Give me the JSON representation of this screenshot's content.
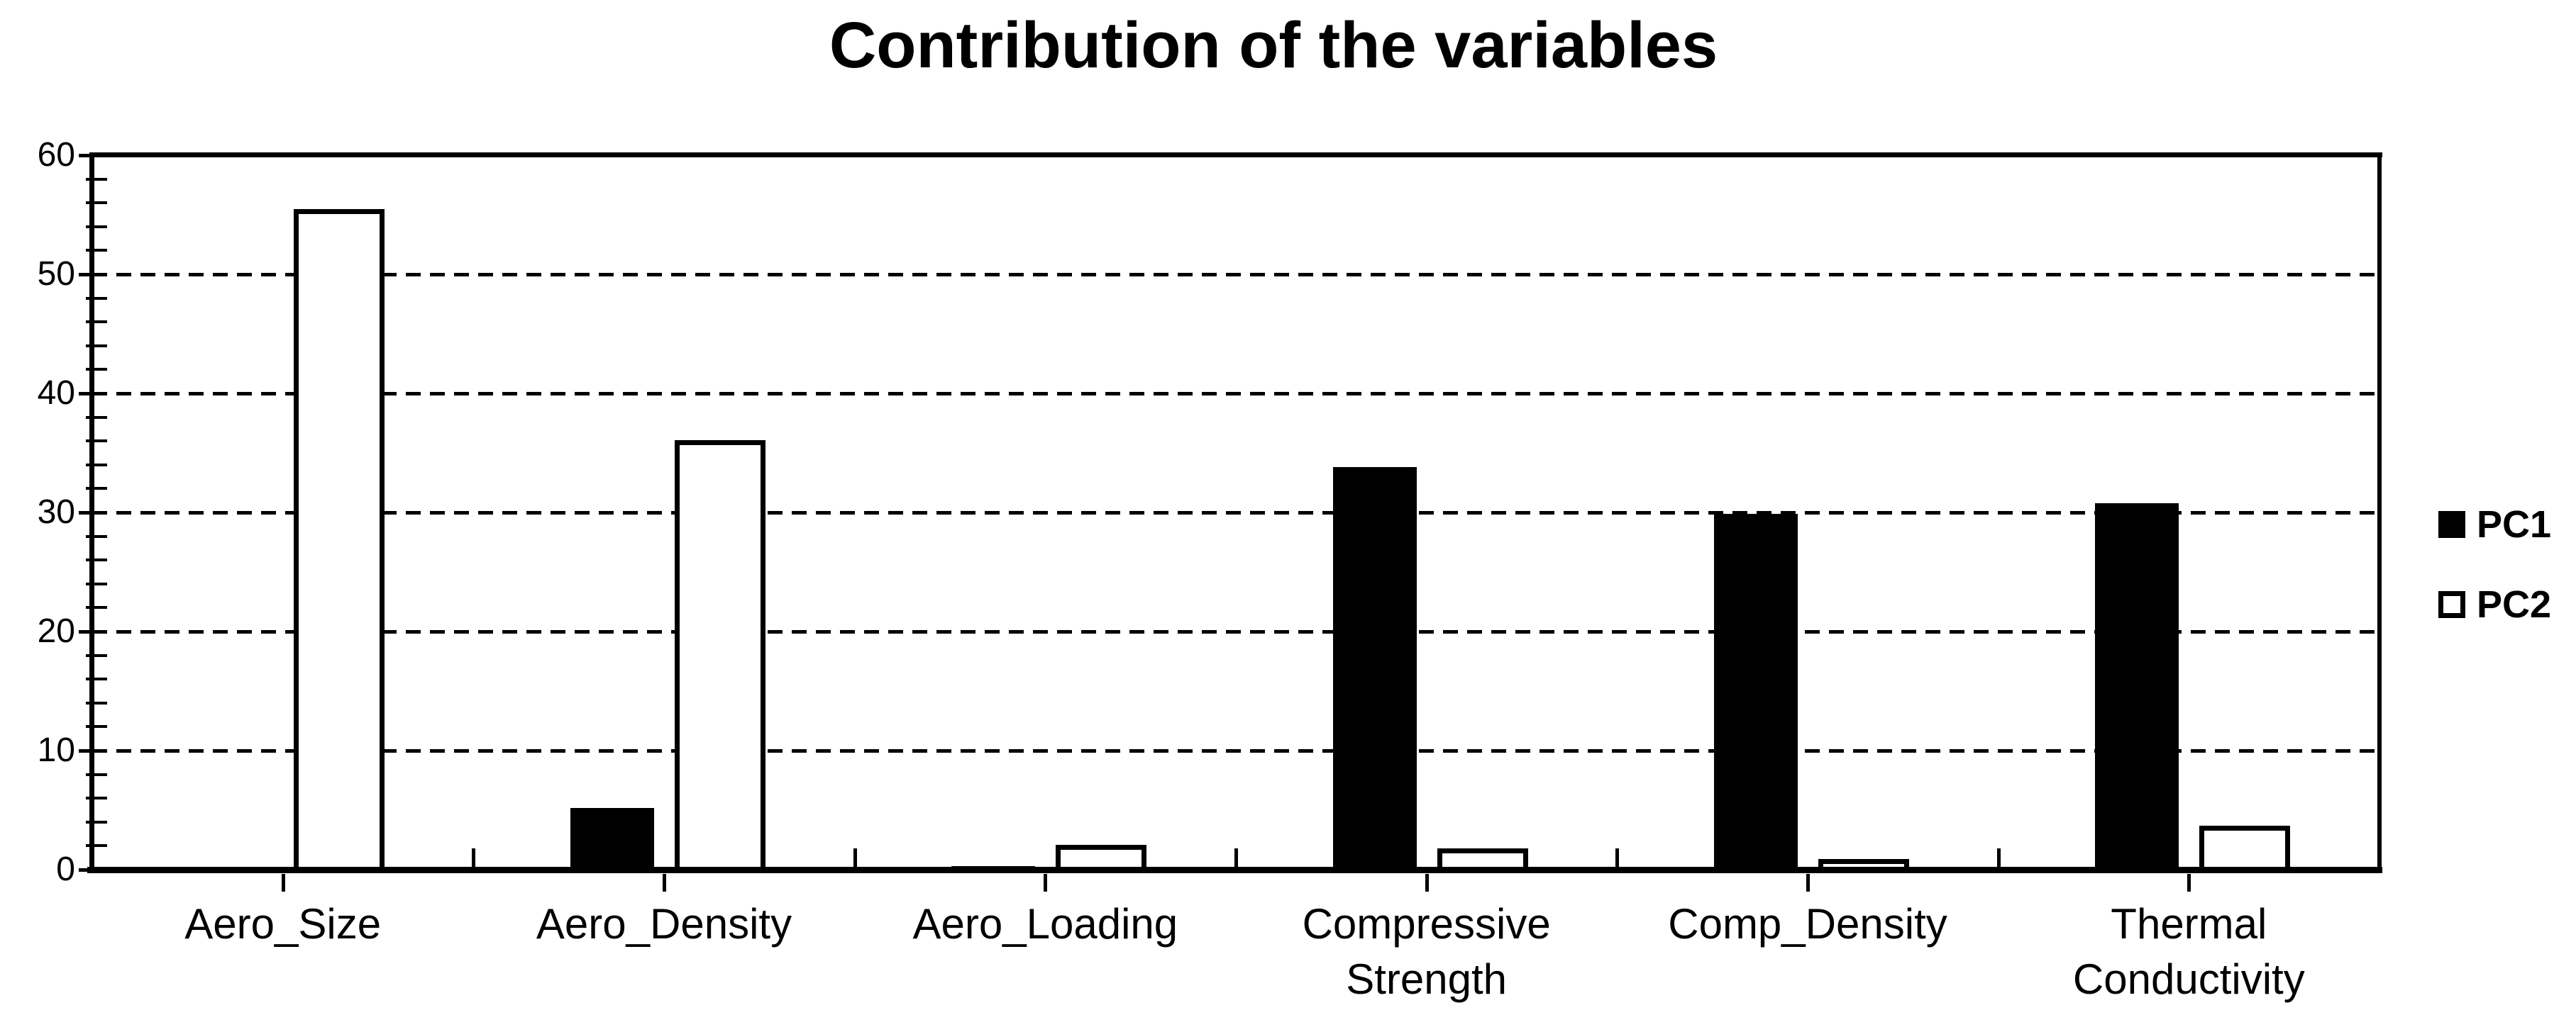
{
  "title": "Contribution of the variables",
  "legend": {
    "position": "right",
    "items": [
      {
        "label": "PC1",
        "swatch": "filled-black-square"
      },
      {
        "label": "PC2",
        "swatch": "hollow-white-square"
      }
    ]
  },
  "colors": {
    "background": "#ffffff",
    "axis": "#000000",
    "gridline": "#000000",
    "pc1_fill": "#000000",
    "pc2_fill": "#ffffff",
    "pc2_border": "#000000",
    "text": "#000000"
  },
  "chart_data": {
    "type": "bar",
    "title": "Contribution of the variables",
    "xlabel": "",
    "ylabel": "",
    "categories": [
      "Aero_Size",
      "Aero_Density",
      "Aero_Loading",
      "Compressive Strength",
      "Comp_Density",
      "Thermal Conductivity"
    ],
    "series": [
      {
        "name": "PC1",
        "values": [
          0,
          5.2,
          0.3,
          33.8,
          29.9,
          30.8
        ]
      },
      {
        "name": "PC2",
        "values": [
          55.5,
          36.1,
          2.1,
          1.8,
          0.9,
          3.7
        ]
      }
    ],
    "ylim": [
      0,
      60
    ],
    "yticks": [
      0,
      10,
      20,
      30,
      40,
      50,
      60
    ],
    "ytick_minor_step": 2,
    "grid": "horizontal-dashed-at-major-ticks",
    "gridline_style": "dashed",
    "legend_position": "center-right",
    "bar_style": {
      "PC1": "solid black",
      "PC2": "white with black outline"
    }
  }
}
